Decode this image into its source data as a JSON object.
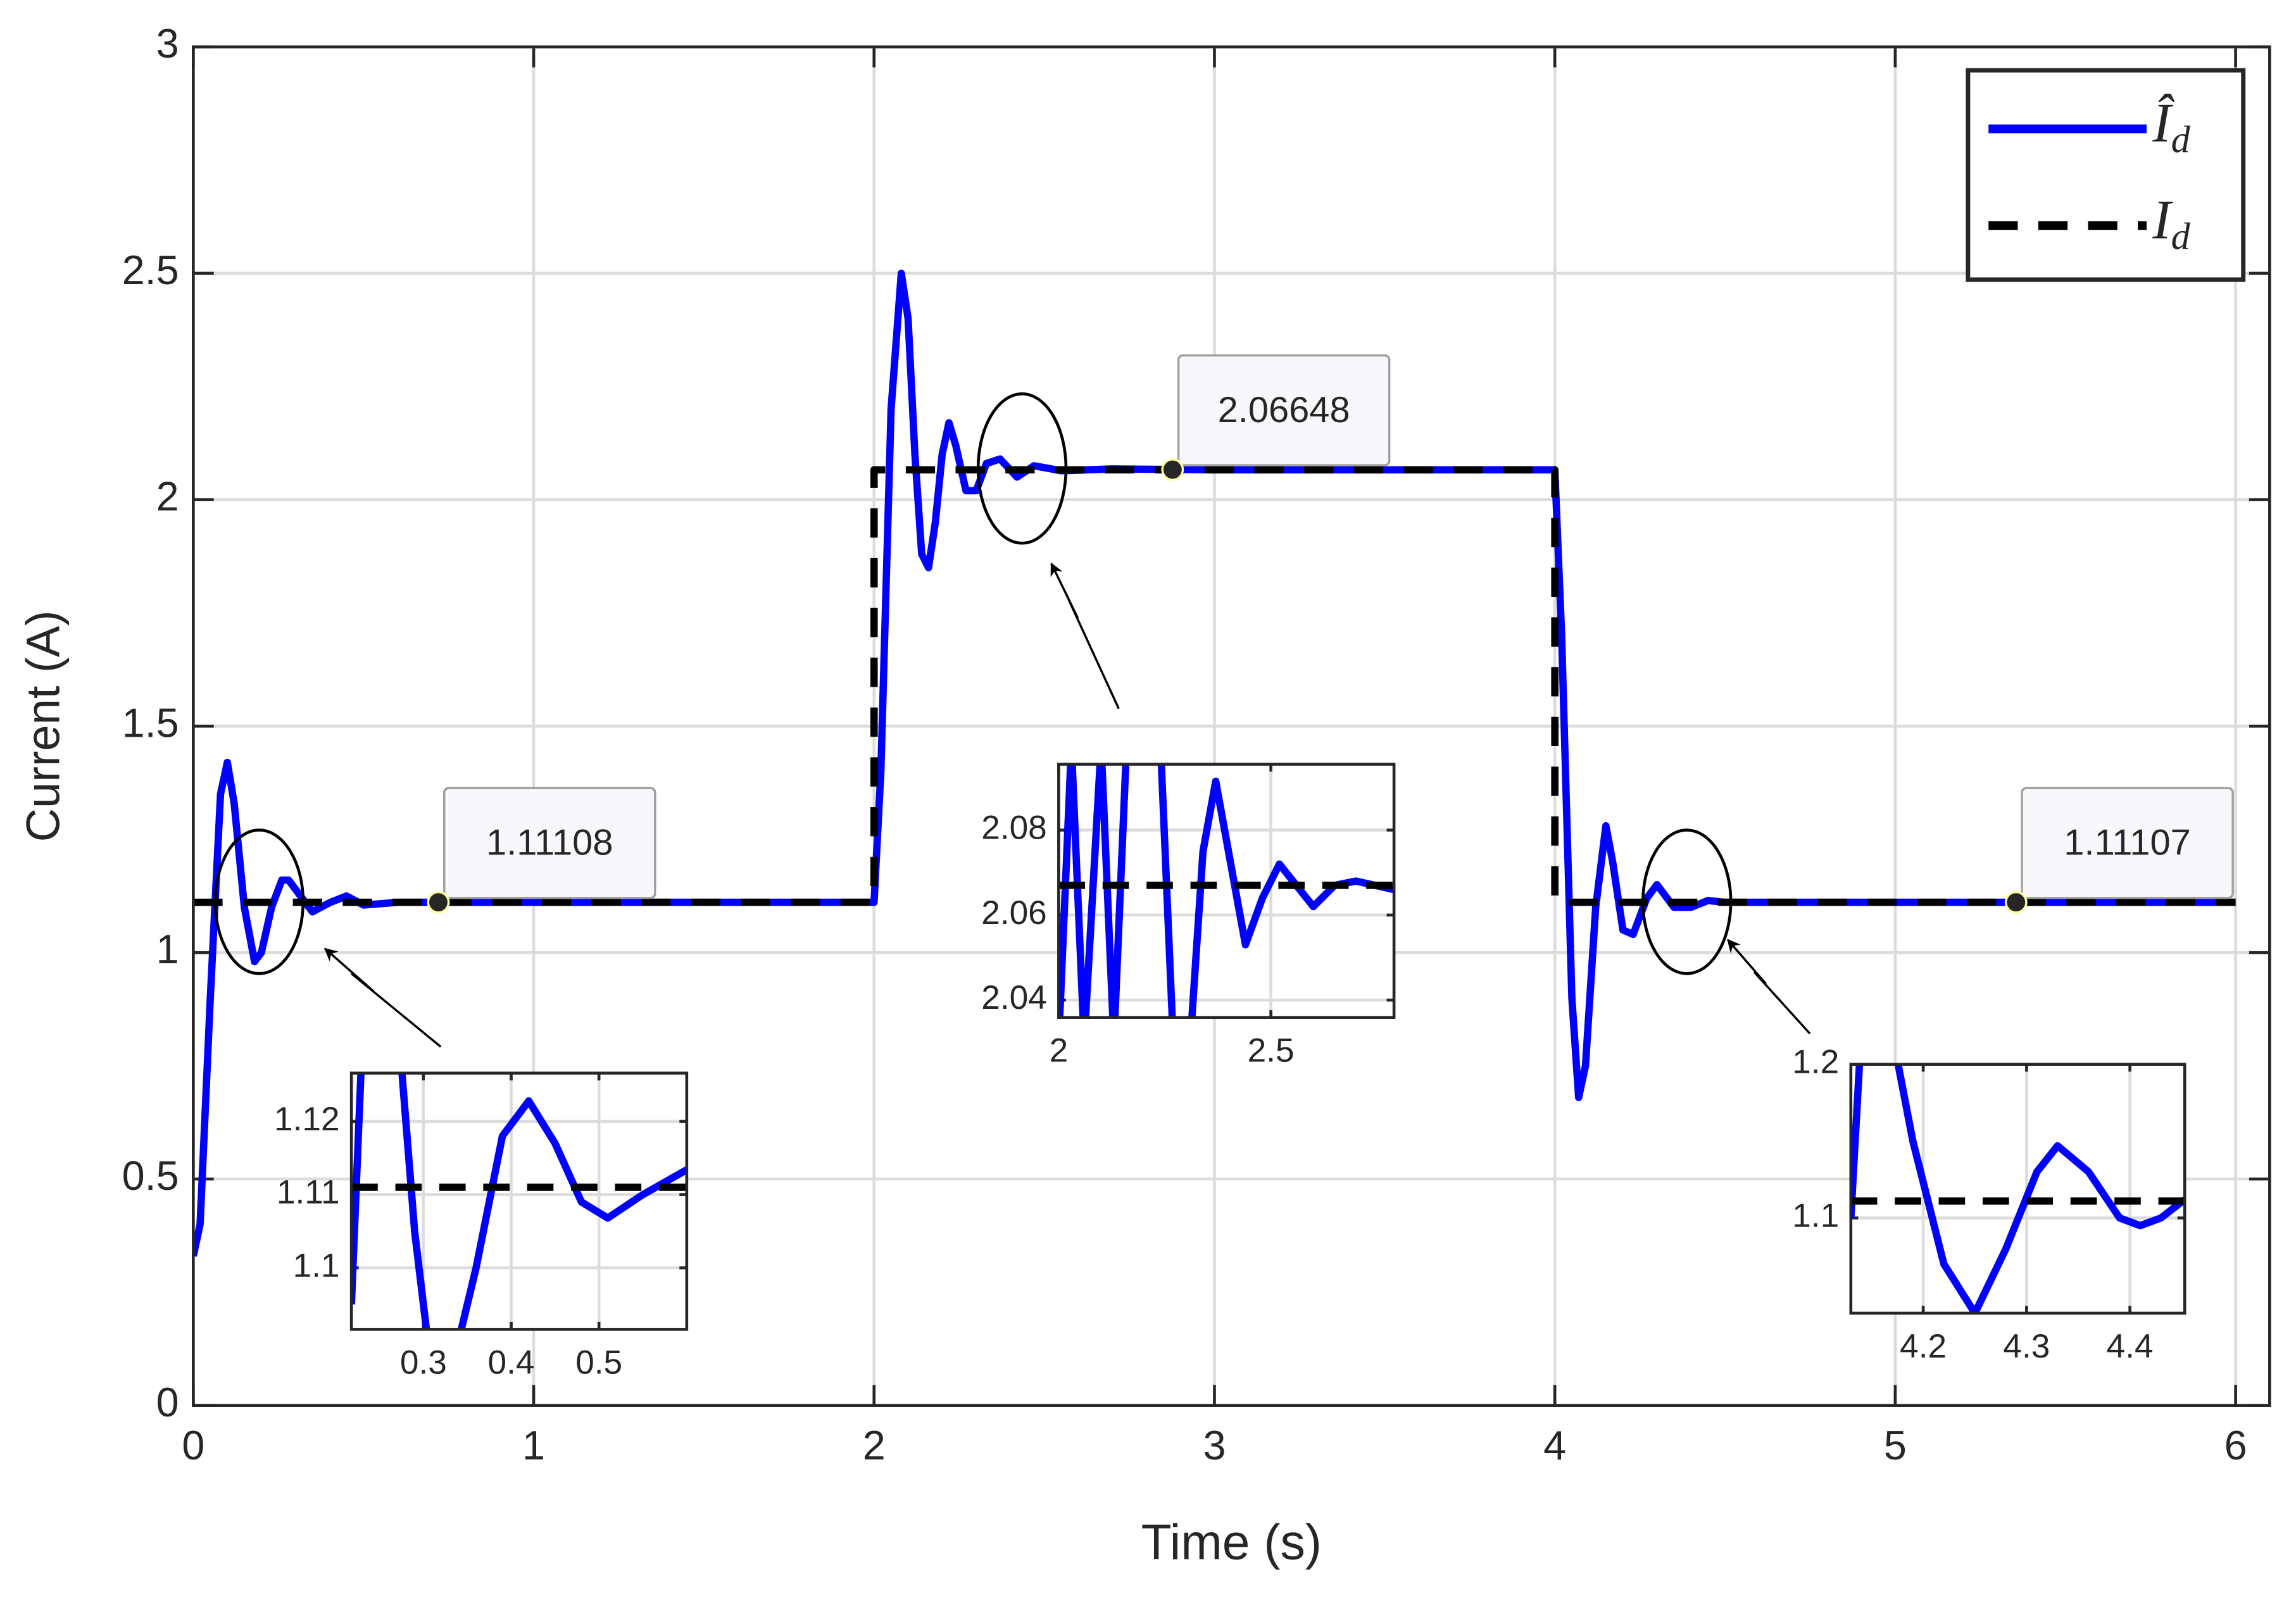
{
  "chart_data": [
    {
      "type": "line",
      "xlabel": "Time (s)",
      "ylabel": "Current (A)",
      "xlim": [
        0,
        6.1
      ],
      "ylim": [
        0,
        3
      ],
      "xticks": [
        0,
        1,
        2,
        3,
        4,
        5,
        6
      ],
      "yticks": [
        0,
        0.5,
        1,
        1.5,
        2,
        2.5,
        3
      ],
      "grid": true,
      "legend": "upper right",
      "series": [
        {
          "name": "Îd",
          "color": "#0000ff",
          "style": "solid",
          "x": [
            0,
            0.02,
            0.05,
            0.08,
            0.1,
            0.12,
            0.15,
            0.18,
            0.2,
            0.23,
            0.26,
            0.28,
            0.32,
            0.35,
            0.4,
            0.45,
            0.5,
            0.6,
            2.0,
            2.02,
            2.05,
            2.08,
            2.1,
            2.12,
            2.14,
            2.16,
            2.18,
            2.2,
            2.22,
            2.24,
            2.27,
            2.3,
            2.33,
            2.37,
            2.42,
            2.47,
            2.55,
            2.7,
            3.0,
            4.0,
            4.02,
            4.05,
            4.07,
            4.09,
            4.12,
            4.15,
            4.17,
            4.2,
            4.23,
            4.27,
            4.3,
            4.35,
            4.4,
            4.45,
            4.5,
            6.0
          ],
          "values": [
            0.33,
            0.4,
            0.9,
            1.35,
            1.42,
            1.33,
            1.1,
            0.98,
            1.0,
            1.1,
            1.16,
            1.16,
            1.12,
            1.09,
            1.11,
            1.125,
            1.105,
            1.111,
            1.111,
            1.4,
            2.2,
            2.5,
            2.4,
            2.1,
            1.88,
            1.85,
            1.95,
            2.1,
            2.17,
            2.12,
            2.02,
            2.02,
            2.08,
            2.09,
            2.05,
            2.075,
            2.064,
            2.068,
            2.066,
            2.066,
            1.7,
            0.9,
            0.68,
            0.75,
            1.1,
            1.28,
            1.2,
            1.05,
            1.04,
            1.12,
            1.15,
            1.1,
            1.1,
            1.115,
            1.111,
            1.111
          ]
        },
        {
          "name": "Id",
          "color": "#000000",
          "style": "dashed",
          "x": [
            0,
            2,
            2,
            4,
            4,
            6
          ],
          "values": [
            1.111,
            1.111,
            2.066,
            2.066,
            1.111,
            1.111
          ]
        }
      ],
      "datatips": [
        {
          "x": 0.72,
          "y": 1.11108,
          "label": "1.11108"
        },
        {
          "x": 2.877,
          "y": 2.06648,
          "label": "2.06648"
        },
        {
          "x": 5.355,
          "y": 1.11107,
          "label": "1.11107"
        }
      ]
    },
    {
      "type": "line",
      "xlim": [
        0.218,
        0.6
      ],
      "ylim": [
        1.0916,
        1.1266
      ],
      "xticks": [
        0.3,
        0.4,
        0.5
      ],
      "yticks": [
        1.1,
        1.11,
        1.12
      ],
      "grid": true,
      "series": [
        {
          "color": "#0000ff",
          "style": "solid",
          "x": [
            0.218,
            0.23,
            0.27,
            0.29,
            0.31,
            0.33,
            0.36,
            0.39,
            0.42,
            0.45,
            0.48,
            0.51,
            0.55,
            0.6
          ],
          "values": [
            1.095,
            1.13,
            1.135,
            1.105,
            1.085,
            1.085,
            1.1,
            1.118,
            1.1228,
            1.117,
            1.109,
            1.1068,
            1.11,
            1.1134
          ]
        },
        {
          "color": "#000000",
          "style": "dashed",
          "x": [
            0.218,
            0.6
          ],
          "values": [
            1.111,
            1.111
          ]
        }
      ]
    },
    {
      "type": "line",
      "xlim": [
        2,
        2.79
      ],
      "ylim": [
        2.0359,
        2.0955
      ],
      "xticks": [
        2,
        2.5
      ],
      "yticks": [
        2.04,
        2.06,
        2.08
      ],
      "grid": true,
      "series": [
        {
          "color": "#0000ff",
          "style": "solid",
          "x": [
            2.0,
            2.03,
            2.06,
            2.1,
            2.13,
            2.16,
            2.2,
            2.24,
            2.27,
            2.31,
            2.34,
            2.37,
            2.4,
            2.44,
            2.48,
            2.52,
            2.56,
            2.6,
            2.65,
            2.7,
            2.79
          ],
          "values": [
            2.03,
            2.1,
            2.03,
            2.1,
            2.03,
            2.1,
            2.1,
            2.1,
            2.03,
            2.03,
            2.075,
            2.0915,
            2.075,
            2.053,
            2.064,
            2.072,
            2.067,
            2.062,
            2.067,
            2.068,
            2.066
          ]
        },
        {
          "color": "#000000",
          "style": "dashed",
          "x": [
            2,
            2.79
          ],
          "values": [
            2.067,
            2.067
          ]
        }
      ]
    },
    {
      "type": "line",
      "xlim": [
        4.13,
        4.453
      ],
      "ylim": [
        1.038,
        1.2
      ],
      "xticks": [
        4.2,
        4.3,
        4.4
      ],
      "yticks": [
        1.1,
        1.2
      ],
      "grid": true,
      "series": [
        {
          "color": "#0000ff",
          "style": "solid",
          "x": [
            4.13,
            4.14,
            4.17,
            4.19,
            4.22,
            4.25,
            4.28,
            4.31,
            4.33,
            4.36,
            4.39,
            4.41,
            4.43,
            4.453
          ],
          "values": [
            1.1,
            1.22,
            1.22,
            1.15,
            1.07,
            1.038,
            1.08,
            1.13,
            1.147,
            1.13,
            1.1,
            1.095,
            1.1,
            1.112
          ]
        },
        {
          "color": "#000000",
          "style": "dashed",
          "x": [
            4.13,
            4.453
          ],
          "values": [
            1.111,
            1.111
          ]
        }
      ]
    }
  ]
}
